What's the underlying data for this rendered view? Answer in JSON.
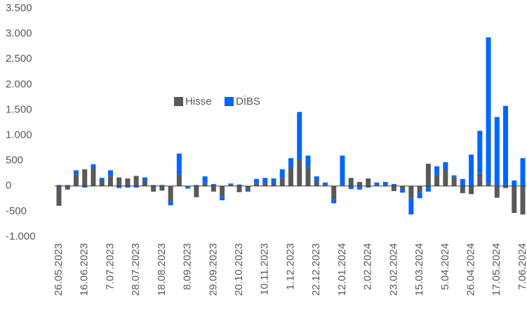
{
  "chart_data": {
    "type": "bar",
    "stacked": true,
    "categories": [
      "26.05.2023",
      null,
      null,
      "16.06.2023",
      null,
      null,
      "7.07.2023",
      null,
      null,
      "28.07.2023",
      null,
      null,
      "18.08.2023",
      null,
      null,
      "8.09.2023",
      null,
      null,
      "29.09.2023",
      null,
      null,
      "20.10.2023",
      null,
      null,
      "10.11.2023",
      null,
      null,
      "1.12.2023",
      null,
      null,
      "22.12.2023",
      null,
      null,
      "12.01.2024",
      null,
      null,
      "2.02.2024",
      null,
      null,
      "23.02.2024",
      null,
      null,
      "15.03.2024",
      null,
      null,
      "5.04.2024",
      null,
      null,
      "26.04.2024",
      null,
      null,
      "17.05.2024",
      null,
      null,
      "7.06.2024"
    ],
    "series": [
      {
        "name": "Hisse",
        "color": "#595959",
        "values": [
          -390,
          -70,
          230,
          330,
          350,
          100,
          200,
          170,
          150,
          200,
          100,
          -110,
          -90,
          -300,
          230,
          -20,
          -220,
          50,
          -110,
          -200,
          30,
          -120,
          -80,
          50,
          50,
          60,
          160,
          350,
          520,
          380,
          100,
          20,
          -270,
          20,
          160,
          80,
          150,
          20,
          20,
          -100,
          -60,
          -250,
          -130,
          440,
          220,
          330,
          180,
          -140,
          -160,
          250,
          50,
          -230,
          -40,
          -530,
          -560
        ]
      },
      {
        "name": "DİBS",
        "color": "#0066ff",
        "values": [
          20,
          20,
          80,
          -30,
          80,
          60,
          110,
          -40,
          -30,
          -30,
          70,
          20,
          20,
          -80,
          410,
          -30,
          20,
          140,
          40,
          -80,
          20,
          30,
          -30,
          90,
          110,
          90,
          170,
          200,
          940,
          220,
          90,
          50,
          -70,
          580,
          -60,
          -70,
          -30,
          50,
          60,
          40,
          -70,
          -310,
          -110,
          -110,
          170,
          140,
          30,
          140,
          620,
          840,
          2880,
          1360,
          1580,
          110,
          550
        ]
      }
    ],
    "ylim": [
      -1000,
      3500
    ],
    "yticks": [
      {
        "value": 3500,
        "label": "3.500"
      },
      {
        "value": 3000,
        "label": "3.000"
      },
      {
        "value": 2500,
        "label": "2.500"
      },
      {
        "value": 2000,
        "label": "2.000"
      },
      {
        "value": 1500,
        "label": "1.500"
      },
      {
        "value": 1000,
        "label": "1.000"
      },
      500,
      0,
      -500,
      {
        "value": -1000,
        "label": "-1.000"
      }
    ],
    "grid": false
  }
}
